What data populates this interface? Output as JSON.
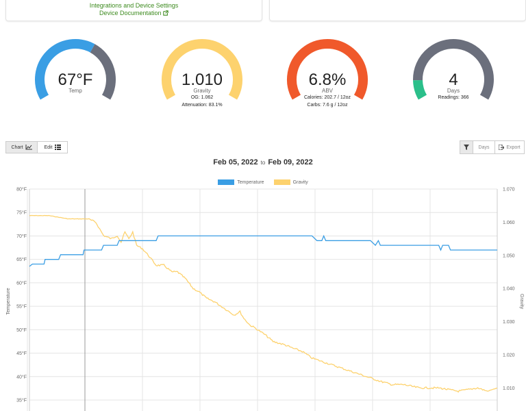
{
  "top_card": {
    "integrations_label": "Integrations and Device Settings",
    "docs_label": "Device Documentation"
  },
  "gauges": [
    {
      "value": "67°F",
      "label": "Temp",
      "subs": [],
      "fill_fraction": 0.62,
      "fill_color": "#3a9ee4",
      "rest_color": "#6b6f7c"
    },
    {
      "value": "1.010",
      "label": "Gravity",
      "subs": [
        "OG: 1.062",
        "Attenuation: 83.1%"
      ],
      "fill_fraction": 1.0,
      "fill_color": "#fdd26e",
      "rest_color": "#fdd26e"
    },
    {
      "value": "6.8%",
      "label": "ABV",
      "subs": [
        "Calories: 202.7 / 12oz",
        "Carbs: 7.6 g / 12oz"
      ],
      "fill_fraction": 1.0,
      "fill_color": "#f0592b",
      "rest_color": "#f0592b"
    },
    {
      "value": "4",
      "label": "Days",
      "subs": [
        "Readings: 366"
      ],
      "fill_fraction": 0.12,
      "fill_color": "#2bbf8a",
      "rest_color": "#6b6f7c"
    }
  ],
  "toolbar": {
    "chart_label": "Chart",
    "edit_label": "Edit",
    "days_label": "Days",
    "export_label": "Export"
  },
  "date_range": {
    "start": "Feb 05, 2022",
    "separator": "to",
    "end": "Feb 09, 2022"
  },
  "chart_data": {
    "type": "line",
    "title": "",
    "series": [
      {
        "name": "Temperature",
        "color": "#3a9ee4",
        "axis": "left"
      },
      {
        "name": "Gravity",
        "color": "#fdd26e",
        "axis": "right"
      }
    ],
    "y_left": {
      "label": "Temperature",
      "ticks": [
        "80°F",
        "75°F",
        "70°F",
        "65°F",
        "60°F",
        "55°F",
        "50°F",
        "45°F",
        "40°F",
        "35°F"
      ],
      "ylim": [
        35,
        80
      ]
    },
    "y_right": {
      "label": "Gravity",
      "ticks": [
        "1.070",
        "1.060",
        "1.050",
        "1.040",
        "1.030",
        "1.020",
        "1.010"
      ],
      "ylim": [
        1.008,
        1.07
      ]
    },
    "temperature": [
      [
        0,
        63.5
      ],
      [
        3,
        64
      ],
      [
        15,
        64
      ],
      [
        16,
        65
      ],
      [
        30,
        65
      ],
      [
        32,
        66
      ],
      [
        55,
        66
      ],
      [
        56,
        67
      ],
      [
        74,
        67
      ],
      [
        76,
        68
      ],
      [
        90,
        68
      ],
      [
        92,
        69
      ],
      [
        98,
        69
      ],
      [
        100,
        69
      ],
      [
        130,
        69
      ],
      [
        132,
        70
      ],
      [
        172,
        70
      ],
      [
        174,
        70
      ],
      [
        210,
        70
      ],
      [
        230,
        70
      ],
      [
        240,
        70
      ],
      [
        260,
        70
      ],
      [
        290,
        70
      ],
      [
        295,
        69
      ],
      [
        300,
        69
      ],
      [
        302,
        70
      ],
      [
        304,
        69
      ],
      [
        350,
        69
      ],
      [
        355,
        68
      ],
      [
        358,
        69
      ],
      [
        360,
        68
      ],
      [
        420,
        68
      ],
      [
        422,
        67
      ],
      [
        424,
        68
      ],
      [
        430,
        68
      ],
      [
        432,
        67
      ],
      [
        480,
        67
      ]
    ],
    "gravity": [
      [
        0,
        1.062
      ],
      [
        20,
        1.062
      ],
      [
        40,
        1.061
      ],
      [
        60,
        1.061
      ],
      [
        68,
        1.06
      ],
      [
        72,
        1.058
      ],
      [
        76,
        1.056
      ],
      [
        84,
        1.055
      ],
      [
        90,
        1.056
      ],
      [
        94,
        1.054
      ],
      [
        98,
        1.057
      ],
      [
        102,
        1.055
      ],
      [
        106,
        1.057
      ],
      [
        110,
        1.053
      ],
      [
        116,
        1.052
      ],
      [
        122,
        1.05
      ],
      [
        130,
        1.047
      ],
      [
        138,
        1.047
      ],
      [
        146,
        1.045
      ],
      [
        152,
        1.045
      ],
      [
        160,
        1.043
      ],
      [
        168,
        1.04
      ],
      [
        174,
        1.039
      ],
      [
        182,
        1.037
      ],
      [
        190,
        1.036
      ],
      [
        200,
        1.034
      ],
      [
        210,
        1.032
      ],
      [
        216,
        1.033
      ],
      [
        220,
        1.031
      ],
      [
        226,
        1.029
      ],
      [
        232,
        1.028
      ],
      [
        242,
        1.026
      ],
      [
        250,
        1.024
      ],
      [
        262,
        1.023
      ],
      [
        270,
        1.022
      ],
      [
        280,
        1.021
      ],
      [
        290,
        1.019
      ],
      [
        300,
        1.018
      ],
      [
        310,
        1.017
      ],
      [
        320,
        1.016
      ],
      [
        330,
        1.015
      ],
      [
        340,
        1.014
      ],
      [
        350,
        1.013
      ],
      [
        360,
        1.012
      ],
      [
        372,
        1.011
      ],
      [
        384,
        1.011
      ],
      [
        400,
        1.01
      ],
      [
        420,
        1.01
      ],
      [
        440,
        1.009
      ],
      [
        460,
        1.01
      ],
      [
        470,
        1.009
      ],
      [
        480,
        1.01
      ]
    ]
  }
}
